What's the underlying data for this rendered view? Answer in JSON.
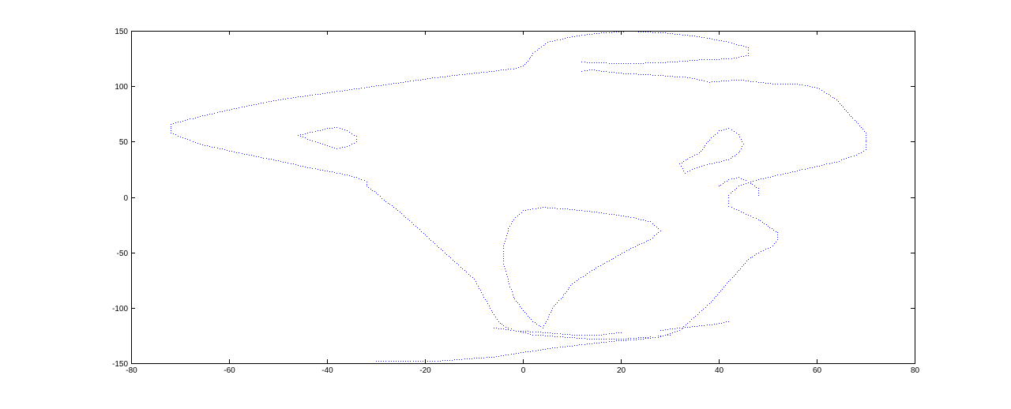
{
  "chart_data": {
    "type": "scatter",
    "title": "",
    "xlabel": "",
    "ylabel": "",
    "xlim": [
      -80,
      80
    ],
    "ylim": [
      -150,
      150
    ],
    "grid": false,
    "box": true,
    "xticks": [
      -80,
      -60,
      -40,
      -20,
      0,
      20,
      40,
      60,
      80
    ],
    "yticks": [
      -150,
      -100,
      -50,
      0,
      50,
      100,
      150
    ],
    "xtick_labels": [
      "-80",
      "-60",
      "-40",
      "-20",
      "0",
      "20",
      "40",
      "60",
      "80"
    ],
    "ytick_labels": [
      "-150",
      "-100",
      "-50",
      "0",
      "50",
      "100",
      "150"
    ],
    "marker": "point",
    "series": [
      {
        "name": "outline",
        "color": "#1a1aff",
        "paths": [
          [
            [
              -72,
              58
            ],
            [
              -72,
              66
            ],
            [
              -66,
              73
            ],
            [
              -58,
              81
            ],
            [
              -50,
              88
            ],
            [
              -42,
              93
            ],
            [
              -34,
              98
            ],
            [
              -26,
              103
            ],
            [
              -18,
              108
            ],
            [
              -10,
              112
            ],
            [
              -2,
              116
            ],
            [
              0,
              119
            ],
            [
              1,
              123
            ],
            [
              2,
              130
            ],
            [
              5,
              140
            ],
            [
              10,
              145
            ],
            [
              15,
              148
            ],
            [
              22,
              150
            ],
            [
              30,
              148
            ],
            [
              36,
              145
            ],
            [
              42,
              140
            ],
            [
              46,
              135
            ],
            [
              46,
              128
            ],
            [
              42,
              125
            ],
            [
              36,
              124
            ],
            [
              30,
              122
            ],
            [
              24,
              121
            ],
            [
              18,
              121
            ],
            [
              12,
              122
            ]
          ],
          [
            [
              12,
              114
            ],
            [
              14,
              115
            ],
            [
              20,
              112
            ],
            [
              28,
              110
            ],
            [
              34,
              108
            ],
            [
              38,
              104
            ],
            [
              44,
              106
            ],
            [
              52,
              102
            ],
            [
              56,
              102
            ],
            [
              60,
              99
            ],
            [
              62,
              94
            ],
            [
              64,
              88
            ],
            [
              66,
              78
            ],
            [
              68,
              68
            ],
            [
              70,
              58
            ],
            [
              70,
              50
            ],
            [
              70,
              43
            ],
            [
              68,
              38
            ],
            [
              64,
              32
            ],
            [
              58,
              26
            ],
            [
              54,
              22
            ],
            [
              48,
              16
            ],
            [
              44,
              10
            ],
            [
              42,
              2
            ],
            [
              42,
              -8
            ],
            [
              44,
              -12
            ],
            [
              46,
              -16
            ],
            [
              48,
              -20
            ],
            [
              50,
              -26
            ],
            [
              52,
              -32
            ],
            [
              52,
              -38
            ],
            [
              51,
              -44
            ],
            [
              48,
              -50
            ],
            [
              46,
              -56
            ],
            [
              44,
              -66
            ],
            [
              42,
              -76
            ],
            [
              40,
              -86
            ],
            [
              38,
              -96
            ],
            [
              36,
              -104
            ],
            [
              34,
              -112
            ],
            [
              32,
              -120
            ],
            [
              28,
              -126
            ],
            [
              24,
              -128
            ],
            [
              18,
              -130
            ],
            [
              12,
              -133
            ],
            [
              6,
              -136
            ],
            [
              0,
              -140
            ],
            [
              -6,
              -144
            ],
            [
              -12,
              -146
            ],
            [
              -18,
              -148
            ],
            [
              -24,
              -148
            ],
            [
              -30,
              -148
            ]
          ],
          [
            [
              -72,
              58
            ],
            [
              -66,
              48
            ],
            [
              -58,
              40
            ],
            [
              -50,
              33
            ],
            [
              -44,
              27
            ],
            [
              -38,
              22
            ],
            [
              -34,
              18
            ],
            [
              -32,
              14
            ],
            [
              -32,
              10
            ],
            [
              -30,
              4
            ],
            [
              -28,
              -4
            ],
            [
              -26,
              -10
            ],
            [
              -24,
              -18
            ],
            [
              -22,
              -26
            ],
            [
              -20,
              -34
            ],
            [
              -18,
              -42
            ],
            [
              -16,
              -50
            ],
            [
              -14,
              -58
            ],
            [
              -12,
              -66
            ],
            [
              -10,
              -74
            ],
            [
              -9,
              -82
            ],
            [
              -8,
              -90
            ],
            [
              -7,
              -98
            ],
            [
              -6,
              -106
            ],
            [
              -5,
              -112
            ],
            [
              -4,
              -116
            ],
            [
              -2,
              -120
            ],
            [
              2,
              -124
            ],
            [
              8,
              -126
            ],
            [
              14,
              -128
            ],
            [
              20,
              -128
            ],
            [
              26,
              -126
            ],
            [
              30,
              -124
            ]
          ],
          [
            [
              -46,
              56
            ],
            [
              -44,
              58
            ],
            [
              -40,
              62
            ],
            [
              -38,
              63
            ],
            [
              -36,
              60
            ],
            [
              -34,
              55
            ],
            [
              -34,
              50
            ],
            [
              -36,
              46
            ],
            [
              -38,
              44
            ],
            [
              -40,
              47
            ],
            [
              -43,
              51
            ],
            [
              -46,
              56
            ]
          ],
          [
            [
              34,
              36
            ],
            [
              36,
              40
            ],
            [
              38,
              52
            ],
            [
              40,
              60
            ],
            [
              42,
              62
            ],
            [
              44,
              57
            ],
            [
              45,
              48
            ],
            [
              44,
              40
            ],
            [
              42,
              34
            ],
            [
              38,
              30
            ],
            [
              35,
              26
            ],
            [
              33,
              22
            ],
            [
              32,
              30
            ],
            [
              34,
              36
            ]
          ],
          [
            [
              -3,
              -28
            ],
            [
              -2,
              -20
            ],
            [
              0,
              -12
            ],
            [
              4,
              -9
            ],
            [
              10,
              -11
            ],
            [
              16,
              -14
            ],
            [
              22,
              -18
            ],
            [
              26,
              -22
            ],
            [
              28,
              -30
            ],
            [
              26,
              -38
            ],
            [
              22,
              -46
            ],
            [
              18,
              -56
            ],
            [
              14,
              -66
            ],
            [
              10,
              -78
            ],
            [
              8,
              -90
            ],
            [
              6,
              -100
            ],
            [
              5,
              -110
            ],
            [
              4,
              -118
            ],
            [
              2,
              -112
            ],
            [
              0,
              -102
            ],
            [
              -2,
              -90
            ],
            [
              -3,
              -76
            ],
            [
              -4,
              -60
            ],
            [
              -4,
              -44
            ],
            [
              -3,
              -28
            ]
          ],
          [
            [
              40,
              10
            ],
            [
              42,
              16
            ],
            [
              44,
              18
            ],
            [
              46,
              14
            ],
            [
              48,
              8
            ],
            [
              48,
              2
            ]
          ],
          [
            [
              -6,
              -118
            ],
            [
              -2,
              -120
            ],
            [
              4,
              -122
            ],
            [
              10,
              -124
            ],
            [
              16,
              -124
            ],
            [
              20,
              -122
            ]
          ],
          [
            [
              28,
              -120
            ],
            [
              32,
              -118
            ],
            [
              36,
              -116
            ],
            [
              40,
              -114
            ],
            [
              42,
              -112
            ]
          ]
        ]
      }
    ]
  }
}
